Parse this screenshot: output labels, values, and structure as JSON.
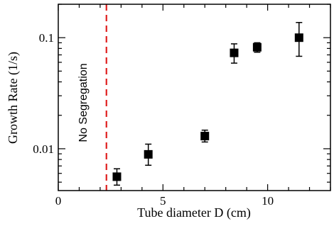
{
  "chart_data": {
    "type": "scatter",
    "xlabel": "Tube diameter  D   (cm)",
    "ylabel": "Growth Rate   (1/s)",
    "xlim": [
      0,
      13
    ],
    "ylim": [
      0.0042,
      0.2
    ],
    "yscale": "log",
    "grid": false,
    "x_ticks": [
      {
        "value": 0,
        "label": "0"
      },
      {
        "value": 5,
        "label": "5"
      },
      {
        "value": 10,
        "label": "10"
      }
    ],
    "y_ticks": [
      {
        "value": 0.01,
        "label": "0.01"
      },
      {
        "value": 0.1,
        "label": "0.1"
      }
    ],
    "marker_color": "#000000",
    "threshold": {
      "x": 2.3,
      "color": "#e02020",
      "style": "dashed",
      "label": "No Segregation"
    },
    "series": [
      {
        "points": [
          {
            "x": 2.8,
            "y": 0.0056,
            "y_low": 0.0047,
            "y_high": 0.0066
          },
          {
            "x": 4.3,
            "y": 0.0089,
            "y_low": 0.0071,
            "y_high": 0.011
          },
          {
            "x": 7.0,
            "y": 0.013,
            "y_low": 0.0115,
            "y_high": 0.0147
          },
          {
            "x": 8.4,
            "y": 0.073,
            "y_low": 0.059,
            "y_high": 0.088
          },
          {
            "x": 9.5,
            "y": 0.082,
            "y_low": 0.074,
            "y_high": 0.09
          },
          {
            "x": 11.5,
            "y": 0.1,
            "y_low": 0.068,
            "y_high": 0.137
          }
        ]
      }
    ]
  }
}
